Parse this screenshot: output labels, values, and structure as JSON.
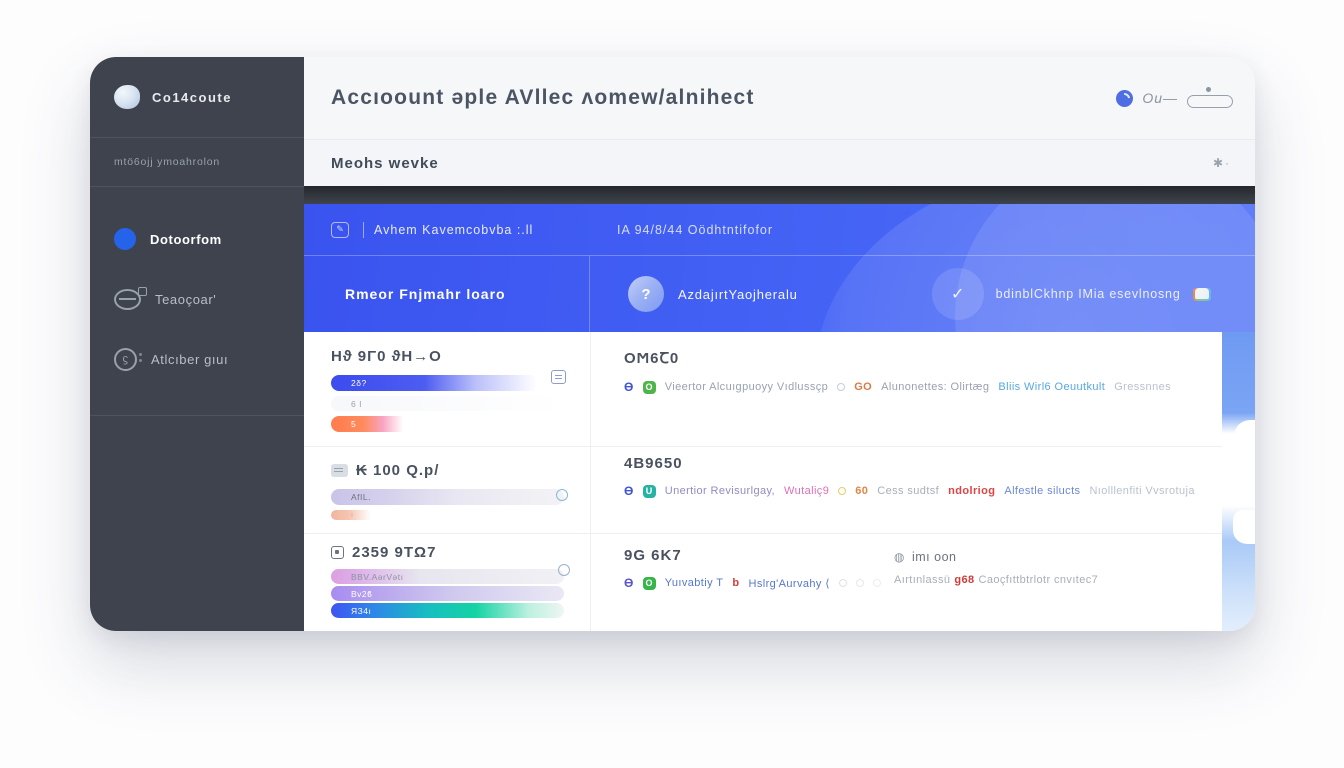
{
  "sidebar": {
    "logo_label": "Co14coute",
    "section_label": "mtö6ojj ymoahrolon",
    "items": [
      {
        "label": "Dotoorfom"
      },
      {
        "label": "Teaoçoar'"
      },
      {
        "label": "Atlcıber gıuı"
      }
    ]
  },
  "header": {
    "title": "Accıoount ǝple AVllec ʌomew/alnihect",
    "user_text": "Ou—"
  },
  "subheader": {
    "title": "Meohs wevke",
    "action_glyph": "✱·"
  },
  "banner": {
    "tab_glyph": "✎",
    "tab_label": "Avhem Kavemcobvba :.ll",
    "meta_label": "IA 94/8/44 Oödhtntifofor",
    "primary_label": "Rmeor Fnjmahr loaro",
    "profile_glyph": "?",
    "profile_label": "AzdajırtYaojheralu",
    "status_glyph": "✓",
    "status_label": "bdinblCkhnp IMia esevlnosng"
  },
  "rows": [
    {
      "left": {
        "title": "Hϑ 9Γ0 ϑH→O",
        "bars": [
          {
            "label": "2δ?",
            "label_color": "#ffffff",
            "width_pct": 100,
            "stops": [
              [
                0,
                "#3c4cee"
              ],
              [
                40,
                "#4d5cf1"
              ],
              [
                62,
                "rgba(130,140,246,0.55)"
              ],
              [
                88,
                "rgba(245,245,250,0)"
              ]
            ]
          },
          {
            "label": "6 I",
            "label_color": "#98a1ad",
            "width_pct": 100,
            "stops": [
              [
                0,
                "rgba(246,247,250,0.9)"
              ],
              [
                100,
                "rgba(250,250,252,0)"
              ]
            ]
          },
          {
            "label": "5",
            "label_color": "#ffffff",
            "width_pct": 100,
            "stops": [
              [
                0,
                "#ff7c4d"
              ],
              [
                14,
                "#ff8b5e"
              ],
              [
                22,
                "#f8a3c0"
              ],
              [
                31,
                "rgba(252,240,246,0)"
              ]
            ]
          }
        ]
      },
      "right": {
        "title": "OϺ6Ꞇ0",
        "segments": [
          {
            "text": "ϴ",
            "color": "#4054d6",
            "glyph": true
          },
          {
            "text": "O",
            "bg": "#4db54a"
          },
          {
            "text": "Vieertor Alcuıgpuoyy Vıdlussçp",
            "color": "#98a2b1"
          },
          {
            "ring": true,
            "color": "#c6cdd7"
          },
          {
            "text": "GO",
            "color": "#d97b42",
            "bold": true
          },
          {
            "text": "Alunonettes: Olirtæg",
            "color": "#98a2b1"
          },
          {
            "text": "Bliis Wirl6 Oeuutkult",
            "color": "#57a7e4"
          },
          {
            "text": "Gressnnes",
            "color": "#b9c2ce"
          }
        ]
      }
    },
    {
      "left": {
        "title": "₭ 100 Q.p/",
        "bars": [
          {
            "label": "AfIL.",
            "label_color": "#6b7280",
            "width_pct": 100,
            "stops": [
              [
                0,
                "#c9c3e8"
              ],
              [
                25,
                "#d5d1ec"
              ],
              [
                55,
                "#e9e8f2"
              ],
              [
                100,
                "#f3f3f6"
              ]
            ]
          },
          {
            "label": "ı",
            "label_color": "#e8a088",
            "width_pct": 100,
            "stops": [
              [
                0,
                "#f2b59c"
              ],
              [
                8,
                "#f5c6b4"
              ],
              [
                17,
                "rgba(255,246,241,0)"
              ]
            ]
          }
        ]
      },
      "right": {
        "title": "4B9650",
        "segments": [
          {
            "text": "ϴ",
            "color": "#4054d6",
            "glyph": true
          },
          {
            "text": "U",
            "bg": "#27b3a4"
          },
          {
            "text": "Unertior Revisurlgay,",
            "color": "#8f8cc4"
          },
          {
            "text": "Wutaliç9",
            "color": "#e070b5"
          },
          {
            "ring": true,
            "color": "#e3cd67"
          },
          {
            "text": "60",
            "color": "#dd8742",
            "bold": true
          },
          {
            "text": "Cess sudtsf",
            "color": "#a7aeba"
          },
          {
            "text": "ndolriog",
            "color": "#e04343",
            "bold": true
          },
          {
            "text": "Alfestle silucts",
            "color": "#6d87d8"
          },
          {
            "text": "Nıolllenfiti Vvsrotuja",
            "color": "#b9c2ce"
          }
        ]
      }
    },
    {
      "left": {
        "title": "2359 9TΩ7",
        "bars": [
          {
            "label": "BBV.AǝrVǝtı",
            "label_color": "#8b93a2",
            "width_pct": 100,
            "stops": [
              [
                0,
                "#dc9fe0"
              ],
              [
                10,
                "#dcaee8"
              ],
              [
                38,
                "#e7e5ef"
              ],
              [
                100,
                "#f1f1f5"
              ]
            ]
          },
          {
            "label": "Bv2ϐ",
            "label_color": "#ffffff",
            "width_pct": 100,
            "stops": [
              [
                0,
                "#a78cf0"
              ],
              [
                22,
                "#b9a7ee"
              ],
              [
                52,
                "#cfc9ee"
              ],
              [
                100,
                "#eae8f4"
              ]
            ]
          },
          {
            "label": "ЯЗ4ı",
            "label_color": "#ffffff",
            "width_pct": 100,
            "stops": [
              [
                0,
                "#3c55f2"
              ],
              [
                18,
                "#2f86e8"
              ],
              [
                42,
                "#17bfc0"
              ],
              [
                62,
                "#14d3a4"
              ],
              [
                85,
                "#bdf0e0"
              ],
              [
                100,
                "#eef6f3"
              ]
            ]
          }
        ]
      },
      "right": {
        "title": "9G 6K7",
        "segments": [
          {
            "text": "ϴ",
            "color": "#5a55c8",
            "glyph": true
          },
          {
            "text": "O",
            "bg": "#35b54a"
          },
          {
            "text": "Yuıvabtiy T",
            "color": "#5577d2"
          },
          {
            "text": "b",
            "color": "#d23b3b",
            "bold": true
          },
          {
            "text": "Hslrg'Aurvahy ⟨",
            "color": "#5577d2"
          },
          {
            "ring": true,
            "color": "#dde2e8"
          },
          {
            "ring": true,
            "color": "#e4e8ed"
          },
          {
            "ring": true,
            "color": "#eaedf1"
          }
        ],
        "aux": {
          "head_glyph": "◍",
          "head_label": "imı oon",
          "line": [
            {
              "text": "Aırtınlassü",
              "color": "#a7aeba"
            },
            {
              "text": "g68",
              "color": "#d23b3b",
              "bold": true
            },
            {
              "text": "Caoçfıttbtrlotr cnvıtec7",
              "color": "#a7aeba"
            }
          ]
        }
      }
    }
  ]
}
